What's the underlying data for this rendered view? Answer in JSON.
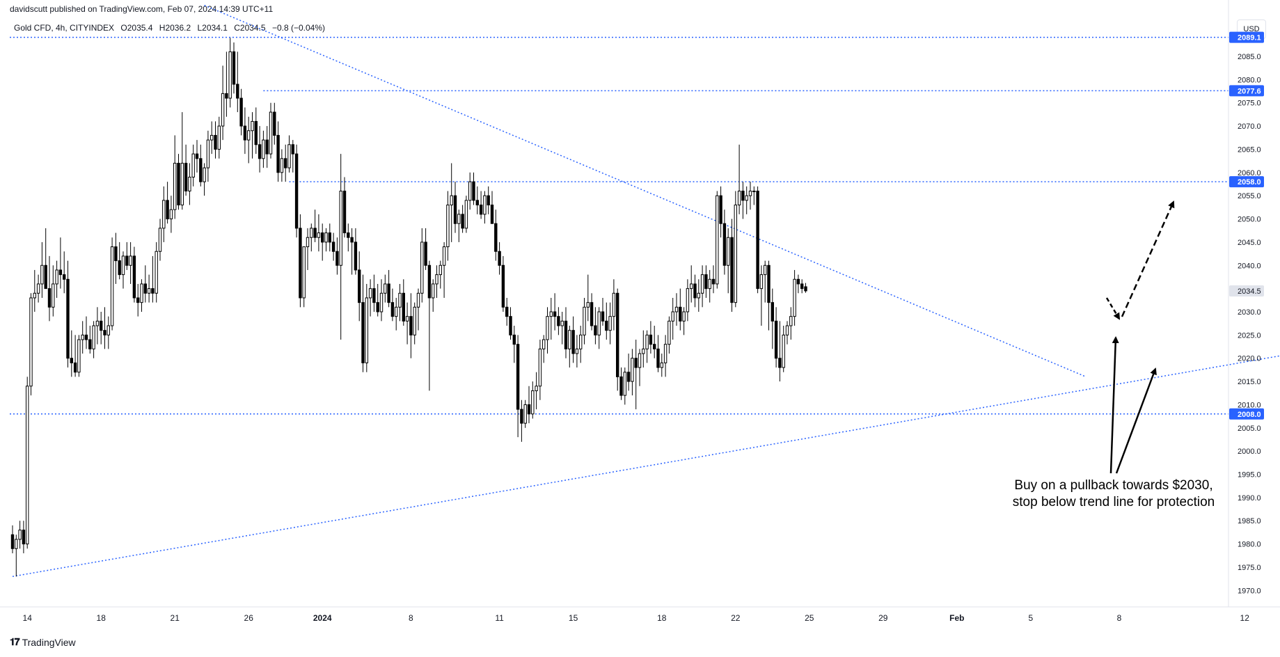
{
  "header": {
    "published": "davidscutt published on TradingView.com, Feb 07, 2024 14:39 UTC+11"
  },
  "legend": {
    "symbol": "Gold CFD, 4h, CITYINDEX",
    "open": "O2035.4",
    "high": "H2036.2",
    "low": "L2034.1",
    "close": "C2034.5",
    "change": "−0.8 (−0.04%)"
  },
  "currency_button": "USD",
  "footer": {
    "logo": "𝟏𝟕",
    "brand": "TradingView"
  },
  "annotation": {
    "line1": "Buy on a pullback towards $2030,",
    "line2": "stop below trend line for protection"
  },
  "colors": {
    "line_blue": "#2962ff",
    "candle_up": "#ffffff",
    "candle_down": "#000000",
    "badge_blue": "#2962ff",
    "badge_grey": "#e0e3eb"
  },
  "chart_data": {
    "type": "candlestick",
    "title": "",
    "xlabel": "",
    "ylabel": "",
    "ylim": [
      1966,
      2092
    ],
    "y_ticks": [
      1970.0,
      1975.0,
      1980.0,
      1985.0,
      1990.0,
      1995.0,
      2000.0,
      2005.0,
      2010.0,
      2015.0,
      2020.0,
      2025.0,
      2030.0,
      2035.0,
      2040.0,
      2045.0,
      2050.0,
      2055.0,
      2060.0,
      2065.0,
      2070.0,
      2075.0,
      2080.0,
      2085.0
    ],
    "x_ticks": [
      {
        "label": "14",
        "bar": 4
      },
      {
        "label": "18",
        "bar": 24
      },
      {
        "label": "21",
        "bar": 44
      },
      {
        "label": "26",
        "bar": 64
      },
      {
        "label": "2024",
        "bar": 84
      },
      {
        "label": "8",
        "bar": 108
      },
      {
        "label": "11",
        "bar": 132
      },
      {
        "label": "15",
        "bar": 152
      },
      {
        "label": "18",
        "bar": 176
      },
      {
        "label": "22",
        "bar": 196
      },
      {
        "label": "25",
        "bar": 216
      },
      {
        "label": "29",
        "bar": 236
      },
      {
        "label": "Feb",
        "bar": 256
      },
      {
        "label": "5",
        "bar": 276
      },
      {
        "label": "8",
        "bar": 300
      },
      {
        "label": "12",
        "bar": 334
      }
    ],
    "candles": [
      [
        1982,
        1984,
        1978,
        1979
      ],
      [
        1979,
        1982,
        1973,
        1981
      ],
      [
        1981,
        1985,
        1979,
        1983
      ],
      [
        1983,
        1985,
        1978,
        1980
      ],
      [
        1980,
        2016,
        1979,
        2014
      ],
      [
        2014,
        2034,
        2012,
        2033
      ],
      [
        2033,
        2039,
        2030,
        2034
      ],
      [
        2034,
        2038,
        2032,
        2036
      ],
      [
        2036,
        2045,
        2033,
        2040
      ],
      [
        2040,
        2048,
        2035,
        2035
      ],
      [
        2035,
        2042,
        2028,
        2031
      ],
      [
        2031,
        2040,
        2029,
        2036
      ],
      [
        2036,
        2041,
        2033,
        2039
      ],
      [
        2039,
        2046,
        2035,
        2038
      ],
      [
        2038,
        2043,
        2034,
        2037
      ],
      [
        2037,
        2041,
        2018,
        2020
      ],
      [
        2020,
        2026,
        2016,
        2019
      ],
      [
        2019,
        2025,
        2016,
        2017
      ],
      [
        2017,
        2025,
        2016,
        2024
      ],
      [
        2024,
        2028,
        2021,
        2025
      ],
      [
        2025,
        2029,
        2022,
        2024
      ],
      [
        2024,
        2027,
        2021,
        2022
      ],
      [
        2022,
        2028,
        2020,
        2027
      ],
      [
        2027,
        2031,
        2023,
        2028
      ],
      [
        2028,
        2030,
        2023,
        2026
      ],
      [
        2026,
        2031,
        2022,
        2025
      ],
      [
        2025,
        2029,
        2022,
        2027
      ],
      [
        2027,
        2046,
        2026,
        2044
      ],
      [
        2044,
        2047,
        2036,
        2041
      ],
      [
        2041,
        2045,
        2037,
        2038
      ],
      [
        2038,
        2043,
        2035,
        2042
      ],
      [
        2042,
        2045,
        2039,
        2040
      ],
      [
        2040,
        2045,
        2036,
        2042
      ],
      [
        2042,
        2044,
        2032,
        2033
      ],
      [
        2033,
        2036,
        2029,
        2032
      ],
      [
        2032,
        2037,
        2030,
        2036
      ],
      [
        2036,
        2040,
        2032,
        2034
      ],
      [
        2034,
        2038,
        2032,
        2035
      ],
      [
        2035,
        2042,
        2032,
        2034
      ],
      [
        2034,
        2045,
        2032,
        2043
      ],
      [
        2043,
        2050,
        2041,
        2048
      ],
      [
        2048,
        2057,
        2045,
        2054
      ],
      [
        2054,
        2058,
        2049,
        2050
      ],
      [
        2050,
        2055,
        2047,
        2052
      ],
      [
        2052,
        2068,
        2050,
        2062
      ],
      [
        2062,
        2064,
        2052,
        2053
      ],
      [
        2053,
        2073,
        2052,
        2062
      ],
      [
        2062,
        2066,
        2055,
        2056
      ],
      [
        2056,
        2062,
        2053,
        2059
      ],
      [
        2059,
        2066,
        2057,
        2064
      ],
      [
        2064,
        2067,
        2060,
        2063
      ],
      [
        2063,
        2066,
        2057,
        2058
      ],
      [
        2058,
        2062,
        2055,
        2061
      ],
      [
        2061,
        2069,
        2058,
        2067
      ],
      [
        2067,
        2071,
        2064,
        2068
      ],
      [
        2068,
        2071,
        2063,
        2065
      ],
      [
        2065,
        2072,
        2063,
        2070
      ],
      [
        2070,
        2083,
        2067,
        2077
      ],
      [
        2077,
        2086,
        2072,
        2076
      ],
      [
        2076,
        2089,
        2074,
        2086
      ],
      [
        2086,
        2088,
        2077,
        2079
      ],
      [
        2079,
        2086,
        2073,
        2076
      ],
      [
        2076,
        2078,
        2068,
        2070
      ],
      [
        2070,
        2074,
        2064,
        2067
      ],
      [
        2067,
        2072,
        2062,
        2069
      ],
      [
        2069,
        2073,
        2063,
        2071
      ],
      [
        2071,
        2074,
        2064,
        2066
      ],
      [
        2066,
        2070,
        2060,
        2063
      ],
      [
        2063,
        2069,
        2061,
        2067
      ],
      [
        2067,
        2070,
        2061,
        2064
      ],
      [
        2064,
        2075,
        2063,
        2073
      ],
      [
        2073,
        2075,
        2066,
        2068
      ],
      [
        2068,
        2071,
        2058,
        2060
      ],
      [
        2060,
        2065,
        2058,
        2063
      ],
      [
        2063,
        2066,
        2058,
        2061
      ],
      [
        2061,
        2068,
        2060,
        2066
      ],
      [
        2066,
        2067,
        2060,
        2064
      ],
      [
        2064,
        2066,
        2046,
        2048
      ],
      [
        2048,
        2051,
        2031,
        2033
      ],
      [
        2033,
        2044,
        2031,
        2044
      ],
      [
        2044,
        2048,
        2039,
        2046
      ],
      [
        2046,
        2049,
        2043,
        2048
      ],
      [
        2048,
        2052,
        2045,
        2046
      ],
      [
        2046,
        2051,
        2043,
        2047
      ],
      [
        2047,
        2049,
        2041,
        2045
      ],
      [
        2045,
        2048,
        2043,
        2047
      ],
      [
        2047,
        2049,
        2043,
        2045
      ],
      [
        2045,
        2047,
        2041,
        2043
      ],
      [
        2043,
        2046,
        2038,
        2040
      ],
      [
        2040,
        2064,
        2024,
        2056
      ],
      [
        2056,
        2059,
        2046,
        2047
      ],
      [
        2047,
        2049,
        2043,
        2046
      ],
      [
        2046,
        2048,
        2038,
        2045
      ],
      [
        2045,
        2048,
        2038,
        2039
      ],
      [
        2039,
        2043,
        2028,
        2032
      ],
      [
        2032,
        2038,
        2017,
        2019
      ],
      [
        2019,
        2036,
        2017,
        2033
      ],
      [
        2033,
        2037,
        2029,
        2035
      ],
      [
        2035,
        2038,
        2030,
        2032
      ],
      [
        2032,
        2036,
        2029,
        2030
      ],
      [
        2030,
        2037,
        2028,
        2034
      ],
      [
        2034,
        2038,
        2032,
        2036
      ],
      [
        2036,
        2039,
        2031,
        2032
      ],
      [
        2032,
        2035,
        2028,
        2029
      ],
      [
        2029,
        2033,
        2026,
        2031
      ],
      [
        2031,
        2036,
        2028,
        2034
      ],
      [
        2034,
        2037,
        2027,
        2028
      ],
      [
        2028,
        2032,
        2023,
        2029
      ],
      [
        2029,
        2034,
        2020,
        2025
      ],
      [
        2025,
        2032,
        2023,
        2031
      ],
      [
        2031,
        2035,
        2026,
        2034
      ],
      [
        2034,
        2048,
        2032,
        2045
      ],
      [
        2045,
        2048,
        2039,
        2040
      ],
      [
        2040,
        2041,
        2013,
        2033
      ],
      [
        2033,
        2037,
        2030,
        2036
      ],
      [
        2036,
        2040,
        2033,
        2038
      ],
      [
        2038,
        2041,
        2035,
        2040
      ],
      [
        2040,
        2045,
        2033,
        2044
      ],
      [
        2044,
        2056,
        2041,
        2053
      ],
      [
        2053,
        2062,
        2045,
        2055
      ],
      [
        2055,
        2058,
        2047,
        2049
      ],
      [
        2049,
        2052,
        2045,
        2051
      ],
      [
        2051,
        2053,
        2047,
        2048
      ],
      [
        2048,
        2055,
        2047,
        2054
      ],
      [
        2054,
        2060,
        2052,
        2058
      ],
      [
        2058,
        2060,
        2053,
        2054
      ],
      [
        2054,
        2057,
        2051,
        2053
      ],
      [
        2053,
        2056,
        2050,
        2051
      ],
      [
        2051,
        2056,
        2049,
        2055
      ],
      [
        2055,
        2057,
        2051,
        2053
      ],
      [
        2053,
        2056,
        2049,
        2049
      ],
      [
        2049,
        2052,
        2041,
        2043
      ],
      [
        2043,
        2045,
        2038,
        2040
      ],
      [
        2040,
        2042,
        2030,
        2031
      ],
      [
        2031,
        2033,
        2027,
        2029
      ],
      [
        2029,
        2031,
        2024,
        2025
      ],
      [
        2025,
        2027,
        2019,
        2023
      ],
      [
        2023,
        2025,
        2003,
        2009
      ],
      [
        2009,
        2011,
        2002,
        2006
      ],
      [
        2006,
        2011,
        2005,
        2010
      ],
      [
        2010,
        2014,
        2006,
        2008
      ],
      [
        2008,
        2015,
        2007,
        2013
      ],
      [
        2013,
        2017,
        2009,
        2014
      ],
      [
        2014,
        2024,
        2011,
        2022
      ],
      [
        2022,
        2025,
        2019,
        2024
      ],
      [
        2024,
        2031,
        2021,
        2029
      ],
      [
        2029,
        2033,
        2024,
        2030
      ],
      [
        2030,
        2034,
        2026,
        2029
      ],
      [
        2029,
        2031,
        2025,
        2027
      ],
      [
        2027,
        2030,
        2023,
        2028
      ],
      [
        2028,
        2031,
        2020,
        2022
      ],
      [
        2022,
        2027,
        2018,
        2026
      ],
      [
        2026,
        2029,
        2019,
        2021
      ],
      [
        2021,
        2025,
        2018,
        2022
      ],
      [
        2022,
        2027,
        2019,
        2025
      ],
      [
        2025,
        2033,
        2023,
        2031
      ],
      [
        2031,
        2038,
        2028,
        2032
      ],
      [
        2032,
        2034,
        2026,
        2027
      ],
      [
        2027,
        2031,
        2023,
        2025
      ],
      [
        2025,
        2031,
        2022,
        2030
      ],
      [
        2030,
        2033,
        2027,
        2028
      ],
      [
        2028,
        2032,
        2024,
        2026
      ],
      [
        2026,
        2032,
        2023,
        2029
      ],
      [
        2029,
        2037,
        2026,
        2034
      ],
      [
        2034,
        2035,
        2013,
        2016
      ],
      [
        2016,
        2018,
        2011,
        2012
      ],
      [
        2012,
        2018,
        2010,
        2017
      ],
      [
        2017,
        2021,
        2013,
        2015
      ],
      [
        2015,
        2022,
        2012,
        2020
      ],
      [
        2020,
        2024,
        2009,
        2018
      ],
      [
        2018,
        2022,
        2014,
        2021
      ],
      [
        2021,
        2026,
        2018,
        2022
      ],
      [
        2022,
        2026,
        2019,
        2025
      ],
      [
        2025,
        2028,
        2021,
        2023
      ],
      [
        2023,
        2027,
        2020,
        2022
      ],
      [
        2022,
        2025,
        2017,
        2018
      ],
      [
        2018,
        2021,
        2016,
        2019
      ],
      [
        2019,
        2025,
        2016,
        2023
      ],
      [
        2023,
        2029,
        2021,
        2028
      ],
      [
        2028,
        2033,
        2024,
        2030
      ],
      [
        2030,
        2034,
        2027,
        2031
      ],
      [
        2031,
        2035,
        2026,
        2028
      ],
      [
        2028,
        2031,
        2025,
        2030
      ],
      [
        2030,
        2037,
        2028,
        2035
      ],
      [
        2035,
        2040,
        2032,
        2036
      ],
      [
        2036,
        2038,
        2031,
        2033
      ],
      [
        2033,
        2037,
        2030,
        2034
      ],
      [
        2034,
        2040,
        2031,
        2038
      ],
      [
        2038,
        2040,
        2033,
        2035
      ],
      [
        2035,
        2039,
        2032,
        2037
      ],
      [
        2037,
        2040,
        2034,
        2036
      ],
      [
        2036,
        2056,
        2035,
        2055
      ],
      [
        2055,
        2057,
        2046,
        2049
      ],
      [
        2049,
        2052,
        2038,
        2040
      ],
      [
        2040,
        2048,
        2034,
        2046
      ],
      [
        2046,
        2050,
        2030,
        2032
      ],
      [
        2032,
        2056,
        2031,
        2053
      ],
      [
        2053,
        2066,
        2051,
        2056
      ],
      [
        2056,
        2058,
        2050,
        2054
      ],
      [
        2054,
        2057,
        2051,
        2055
      ],
      [
        2055,
        2058,
        2052,
        2056
      ],
      [
        2056,
        2057,
        2053,
        2056
      ],
      [
        2056,
        2057,
        2034,
        2035
      ],
      [
        2035,
        2040,
        2027,
        2038
      ],
      [
        2038,
        2041,
        2032,
        2040
      ],
      [
        2040,
        2041,
        2026,
        2032
      ],
      [
        2032,
        2035,
        2022,
        2028
      ],
      [
        2028,
        2031,
        2018,
        2020
      ],
      [
        2020,
        2028,
        2015,
        2018
      ],
      [
        2018,
        2027,
        2017,
        2025
      ],
      [
        2025,
        2028,
        2023,
        2027
      ],
      [
        2027,
        2031,
        2024,
        2029
      ],
      [
        2029,
        2039,
        2027,
        2037
      ],
      [
        2037,
        2038,
        2034,
        2036
      ],
      [
        2036,
        2037,
        2034,
        2035
      ],
      [
        2035.4,
        2036.2,
        2034.1,
        2034.5
      ]
    ],
    "horizontal_levels": [
      {
        "label": "2089.1",
        "value": 2089.1,
        "badge": "blue"
      },
      {
        "label": "2077.6",
        "value": 2077.6,
        "badge": "blue"
      },
      {
        "label": "2058.0",
        "value": 2058.0,
        "badge": "blue"
      },
      {
        "label": "2008.0",
        "value": 2008.0,
        "badge": "blue"
      },
      {
        "label": "2034.5",
        "value": 2034.5,
        "badge": "grey"
      }
    ],
    "trend_lines": [
      {
        "name": "",
        "from": {
          "bar": 0,
          "value": 1973
        },
        "to": {
          "bar": 376,
          "value": 2025
        }
      },
      {
        "name": "",
        "from": {
          "bar": 52,
          "value": 2096
        },
        "to": {
          "bar": 291,
          "value": 2016
        }
      }
    ]
  }
}
